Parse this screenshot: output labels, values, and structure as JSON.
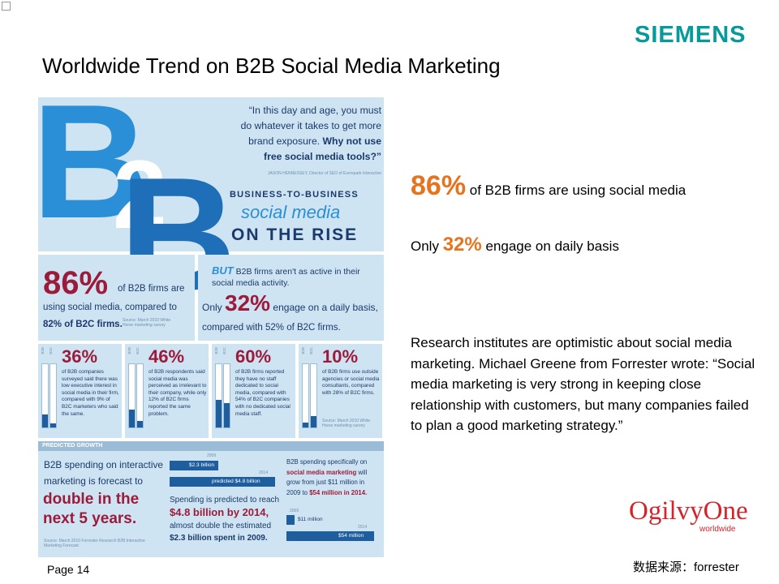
{
  "header": {
    "logo": "SIEMENS",
    "title": "Worldwide Trend on B2B Social Media Marketing"
  },
  "infographic": {
    "quote": {
      "text": "“In this day and age, you must do whatever it takes to get more brand exposure.",
      "emphasis": "Why not use free social media tools?”",
      "attribution": "JASON HENNESSEY, Director of SEO of Everspark Interactive"
    },
    "hero": {
      "letters": [
        "B",
        "2",
        "B"
      ],
      "kicker": "BUSINESS-TO-BUSINESS",
      "subject": "social media",
      "headline": "ON THE RISE"
    },
    "usage": {
      "figure": "86%",
      "text": "of B2B firms are",
      "text2": "using social media, compared to",
      "b2c": "82% of B2C firms.",
      "source": "Source: March 2010 White Horse marketing survey"
    },
    "activity": {
      "lead": "BUT",
      "text": "B2B firms aren't as active in their social media activity.",
      "prefix": "Only",
      "figure": "32%",
      "text2": "engage on a daily basis,",
      "text3": "compared with 52% of B2C firms."
    },
    "bar_labels": [
      "B2B",
      "B2C"
    ],
    "stats": [
      {
        "figure": "36%",
        "text": "of B2B companies surveyed said there was low executive interest in social media in their firm, compared with 9% of B2C marketers who said the same."
      },
      {
        "figure": "46%",
        "text": "of B2B respondents said social media was perceived as irrelevant to their company, while only 12% of B2C firms reported the same problem."
      },
      {
        "figure": "60%",
        "text": "of B2B firms reported they have no staff dedicated to social media, compared with 54% of B2C companies with no dedicated social media staff."
      },
      {
        "figure": "10%",
        "text": "of B2B firms use outside agencies or social media consultants, compared with 28% of B2C firms.",
        "source": "Source: March 2010 White Horse marketing survey"
      }
    ],
    "growth": {
      "heading": "PREDICTED GROWTH",
      "lead": "B2B spending on interactive marketing is forecast to",
      "highlight": "double in the next 5 years.",
      "source": "Source: March 2010 Forrester Research B2B Interactive Marketing Forecast",
      "chart1": {
        "labels": [
          "2009",
          "$2.3 billion",
          "2014",
          "predicted $4.8 billion"
        ]
      },
      "detail": [
        "Spending is predicted to reach",
        "$4.8 billion by 2014,",
        "almost double the estimated",
        "$2.3 billion spent in 2009."
      ],
      "social": [
        "B2B spending specifically on",
        "social media marketing",
        "will grow from just $11 million in 2009 to",
        "$54 million in 2014."
      ],
      "chart2": {
        "labels": [
          "2009",
          "$11 million",
          "2014",
          "$54 million"
        ]
      }
    }
  },
  "content": {
    "usage": {
      "figure": "86%",
      "text": " of B2B firms are using social media"
    },
    "daily": {
      "prefix": "Only",
      "figure": "32%",
      "text": "engage on daily basis"
    },
    "paragraph": "Research  institutes are optimistic about social media marketing. Michael Greene from Forrester wrote: “Social media marketing is very strong in keeping close relationship with customers, but many companies failed to plan a good marketing strategy.”"
  },
  "footer": {
    "brand": "OgilvyOne",
    "brand_tagline": "worldwide",
    "page": "Page 14",
    "source": "数据来源：forrester"
  }
}
